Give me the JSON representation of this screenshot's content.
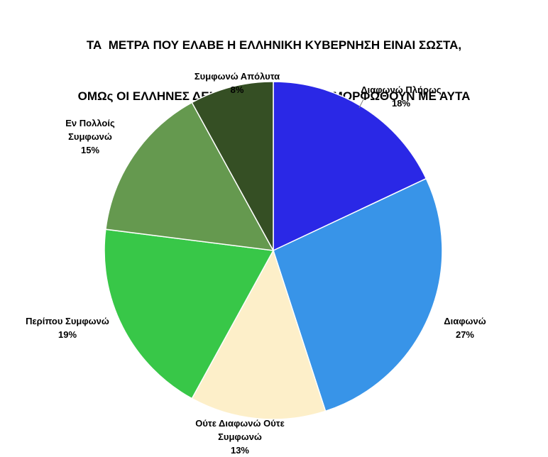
{
  "chart_data": {
    "type": "pie",
    "title_lines": [
      "ΤΑ  ΜΕΤΡΑ ΠΟΥ ΕΛΑΒΕ Η ΕΛΛΗΝΙΚΗ ΚΥΒΕΡΝΗΣΗ ΕΙΝΑΙ ΣΩΣΤΑ,",
      "ΟΜΩς ΟΙ ΕΛΛΗΝΕΣ ΔΕΝ ΜΠΟΡΟΥΝ ΝΑ ΣΥΜΜΟΡΦΩΘΟΥΝ ΜΕ ΑΥΤΑ"
    ],
    "slices": [
      {
        "label_lines": [
          "Διαφωνώ Πλήρως"
        ],
        "percent_label": "18%",
        "value": 18,
        "color": "#2a28e6"
      },
      {
        "label_lines": [
          "Διαφωνώ"
        ],
        "percent_label": "27%",
        "value": 27,
        "color": "#3894e8"
      },
      {
        "label_lines": [
          "Ούτε Διαφωνώ Ούτε",
          "Συμφωνώ"
        ],
        "percent_label": "13%",
        "value": 13,
        "color": "#fdefc9"
      },
      {
        "label_lines": [
          "Περίπου Συμφωνώ"
        ],
        "percent_label": "19%",
        "value": 19,
        "color": "#38c748"
      },
      {
        "label_lines": [
          "Εν Πολλοίς",
          "Συμφωνώ"
        ],
        "percent_label": "15%",
        "value": 15,
        "color": "#65994f"
      },
      {
        "label_lines": [
          "Συμφωνώ Απόλυτα"
        ],
        "percent_label": "8%",
        "value": 8,
        "color": "#354f24"
      }
    ]
  }
}
